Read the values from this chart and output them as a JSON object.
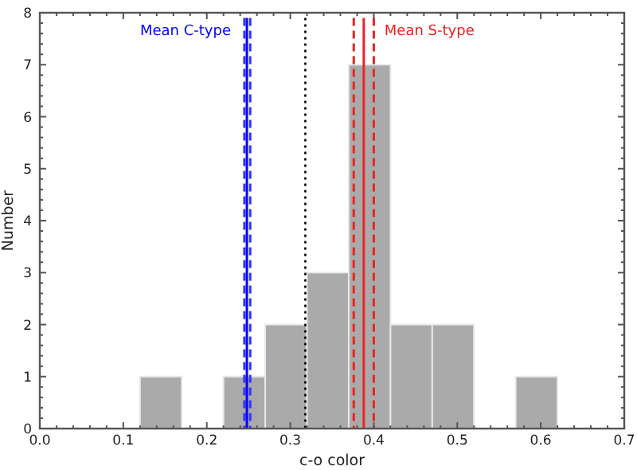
{
  "chart_data": {
    "type": "histogram",
    "xlabel": "c-o color",
    "ylabel": "Number",
    "bins": [
      0.12,
      0.17,
      0.22,
      0.27,
      0.32,
      0.37,
      0.42,
      0.47,
      0.52,
      0.57,
      0.62
    ],
    "values": [
      1,
      0,
      1,
      2,
      3,
      7,
      2,
      2,
      0,
      1
    ],
    "color": "#aaaaaa",
    "xlim": [
      0,
      0.7
    ],
    "xticks": [
      {
        "value": 0,
        "label": "0.0"
      },
      0.1,
      0.2,
      0.3,
      0.4,
      0.5,
      0.6,
      0.7
    ],
    "ylim": [
      0,
      8
    ],
    "yticks": [
      0,
      1,
      2,
      3,
      4,
      5,
      6,
      7,
      8
    ],
    "grid": false,
    "ref_lines": [
      {
        "axis": "x",
        "value": 0.245,
        "color": "#3333ff",
        "line_style": "dashed"
      },
      {
        "axis": "x",
        "value": 0.252,
        "color": "#3333ff",
        "line_style": "dashed"
      },
      {
        "axis": "x",
        "value": 0.248,
        "color": "#0000ff",
        "line_style": "solid",
        "label": "Mean C-type"
      },
      {
        "axis": "x",
        "value": 0.318,
        "color": "#000000",
        "line_style": "dotted"
      },
      {
        "axis": "x",
        "value": 0.376,
        "color": "#ee2222",
        "line_style": "dashed"
      },
      {
        "axis": "x",
        "value": 0.4,
        "color": "#ee2222",
        "line_style": "dashed"
      },
      {
        "axis": "x",
        "value": 0.388,
        "color": "#ee2222",
        "line_style": "solid",
        "label": "Mean S-type"
      }
    ]
  }
}
